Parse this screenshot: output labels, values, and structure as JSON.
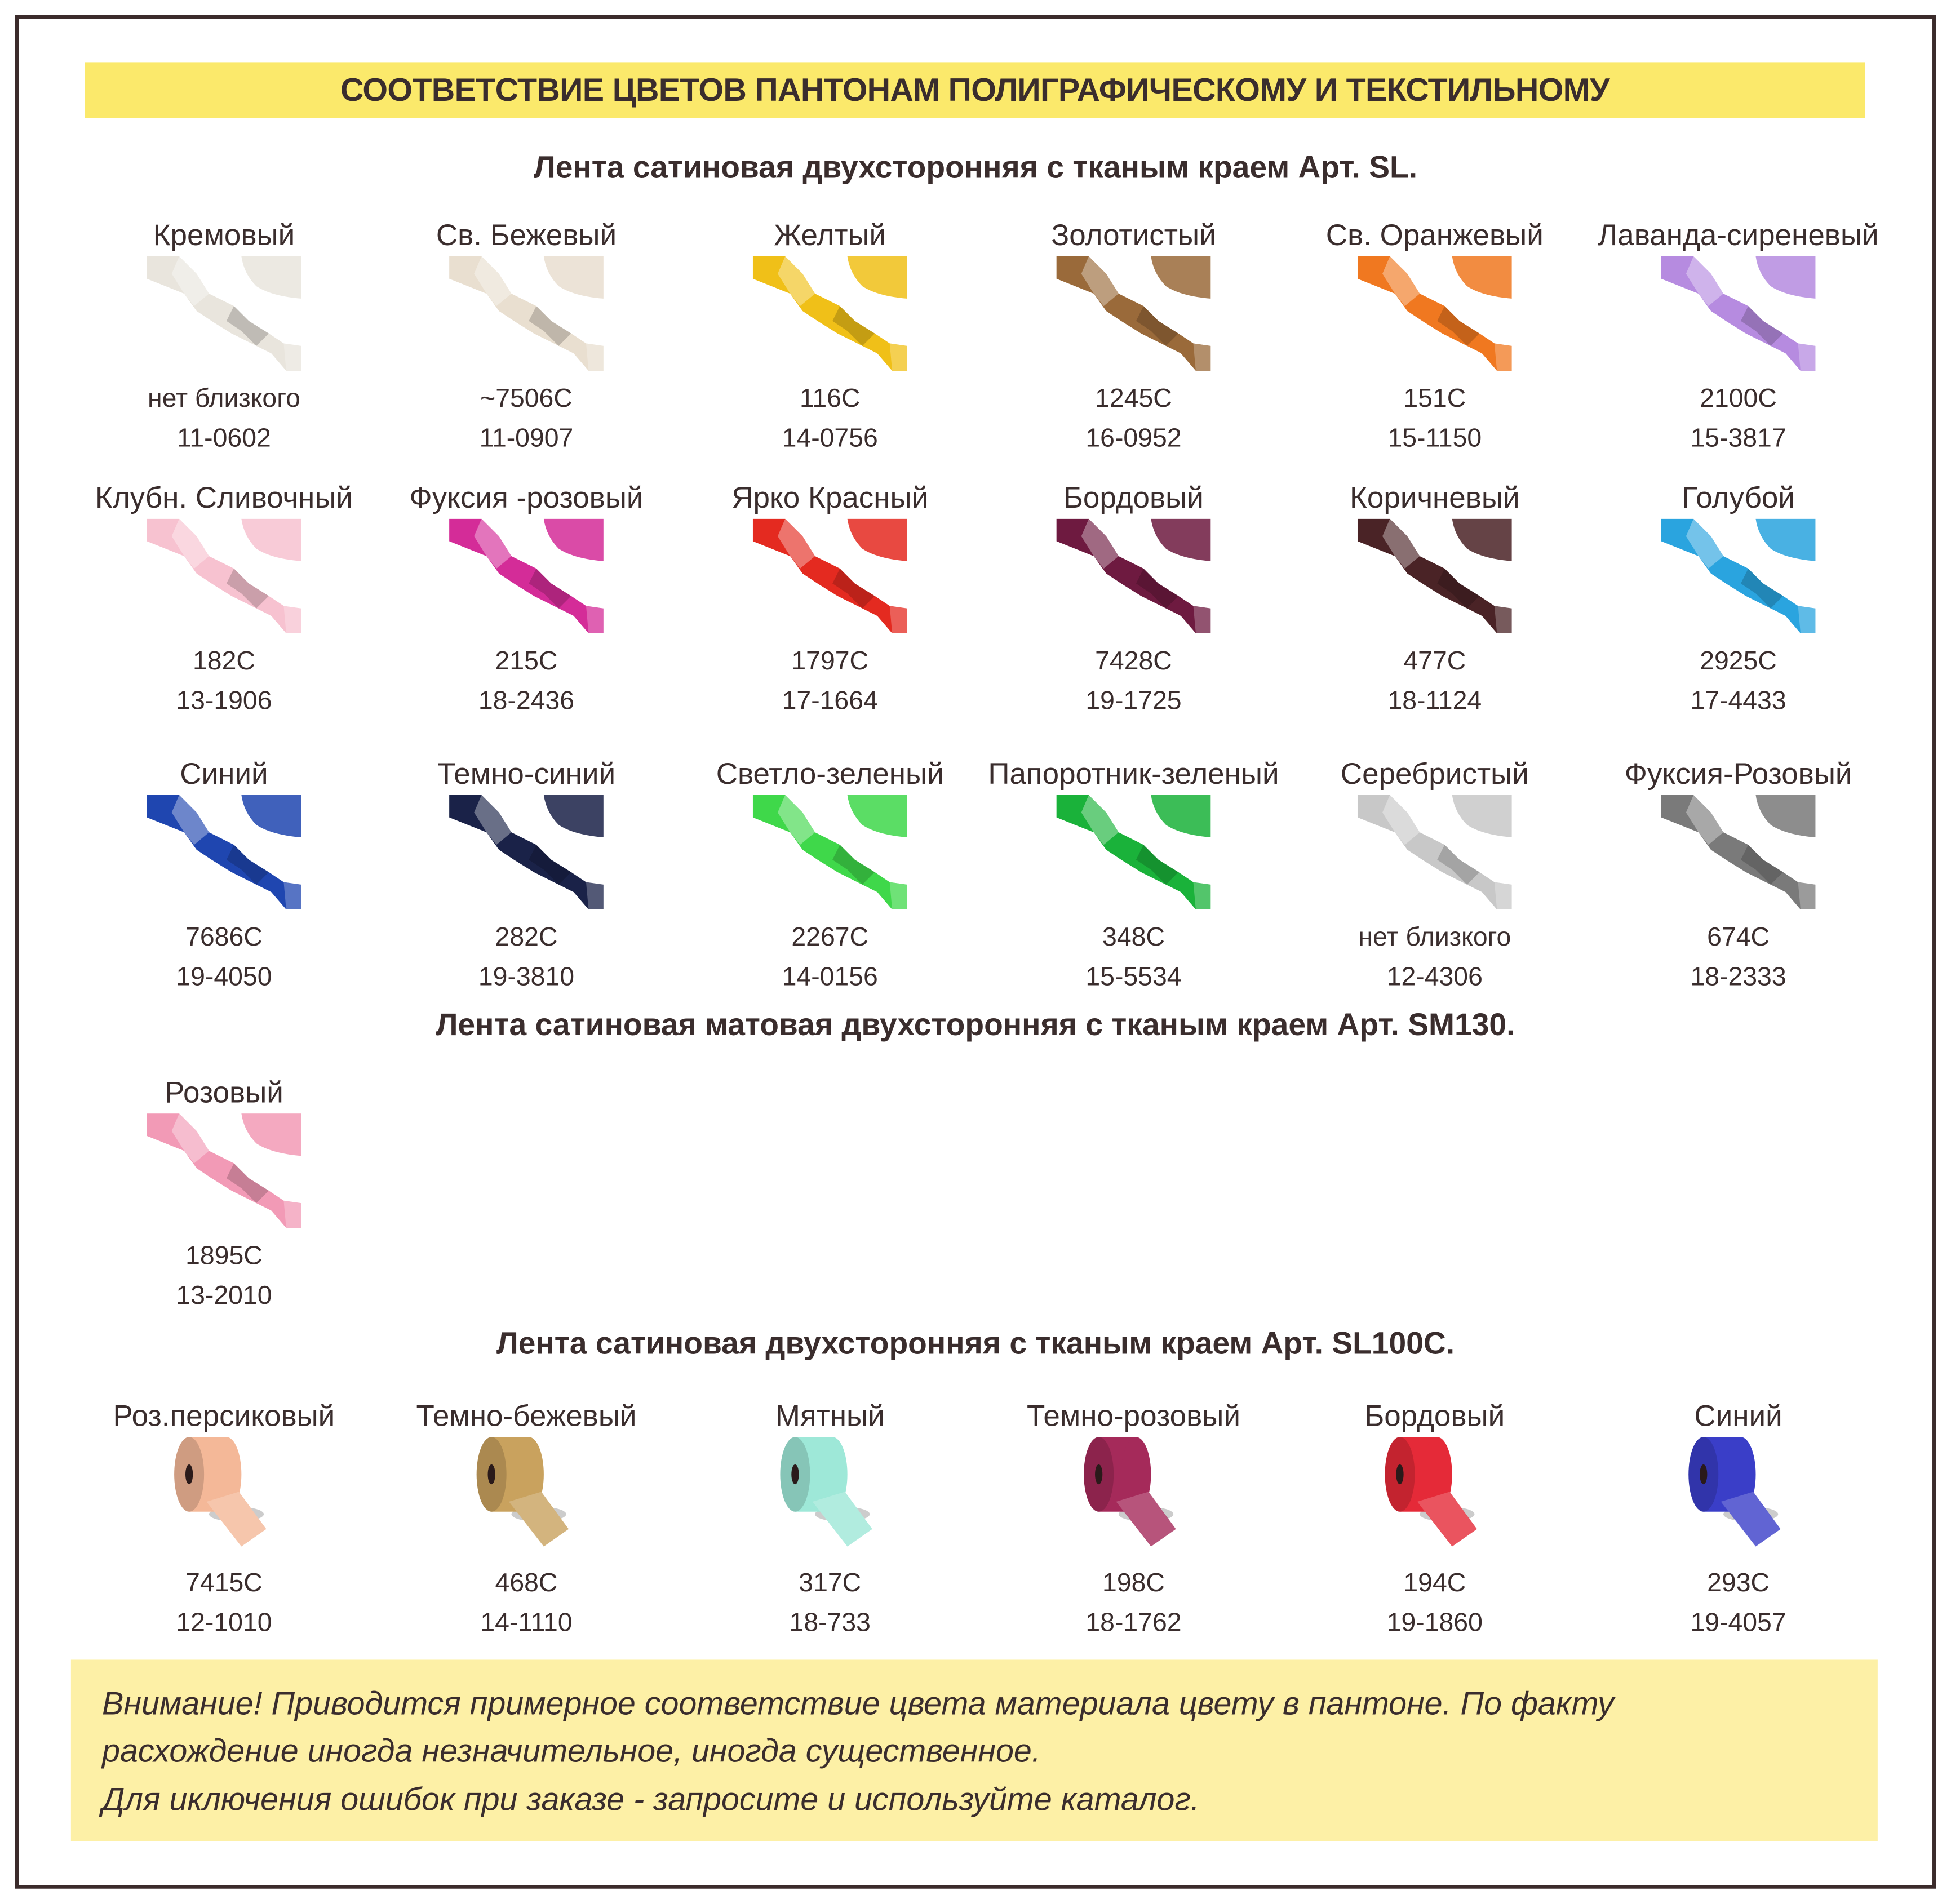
{
  "title": "СООТВЕТСТВИЕ ЦВЕТОВ ПАНТОНАМ ПОЛИГРАФИЧЕСКОМУ И ТЕКСТИЛЬНОМУ",
  "sections": [
    {
      "title": "Лента сатиновая двухсторонняя с тканым краем Арт. SL.",
      "kind": "ribbon",
      "items": [
        {
          "name": "Кремовый",
          "pantone": "нет близкого",
          "tcx": "11-0602",
          "color": "#e9e5dd"
        },
        {
          "name": "Св. Бежевый",
          "pantone": "~7506C",
          "tcx": "11-0907",
          "color": "#e9dfd0"
        },
        {
          "name": "Желтый",
          "pantone": "116C",
          "tcx": "14-0756",
          "color": "#f0c018"
        },
        {
          "name": "Золотистый",
          "pantone": "1245C",
          "tcx": "16-0952",
          "color": "#9a6a3a"
        },
        {
          "name": "Св. Оранжевый",
          "pantone": "151C",
          "tcx": "15-1150",
          "color": "#f07820"
        },
        {
          "name": "Лаванда-сиреневый",
          "pantone": "2100C",
          "tcx": "15-3817",
          "color": "#b68be0"
        },
        {
          "name": "Клубн. Сливочный",
          "pantone": "182C",
          "tcx": "13-1906",
          "color": "#f7c2d0"
        },
        {
          "name": "Фуксия -розовый",
          "pantone": "215C",
          "tcx": "18-2436",
          "color": "#d42c98"
        },
        {
          "name": "Ярко Красный",
          "pantone": "1797C",
          "tcx": "17-1664",
          "color": "#e42a20"
        },
        {
          "name": "Бордовый",
          "pantone": "7428C",
          "tcx": "19-1725",
          "color": "#6e1a40"
        },
        {
          "name": "Коричневый",
          "pantone": "477C",
          "tcx": "18-1124",
          "color": "#4a2326"
        },
        {
          "name": "Голубой",
          "pantone": "2925C",
          "tcx": "17-4433",
          "color": "#2aa4df"
        },
        {
          "name": "Синий",
          "pantone": "7686C",
          "tcx": "19-4050",
          "color": "#1f46b0"
        },
        {
          "name": "Темно-синий",
          "pantone": "282C",
          "tcx": "19-3810",
          "color": "#1a2248"
        },
        {
          "name": "Светло-зеленый",
          "pantone": "2267C",
          "tcx": "14-0156",
          "color": "#3fd84a"
        },
        {
          "name": "Папоротник-зеленый",
          "pantone": "348C",
          "tcx": "15-5534",
          "color": "#1ab23a"
        },
        {
          "name": "Серебристый",
          "pantone": "нет близкого",
          "tcx": "12-4306",
          "color": "#c8c8c8"
        },
        {
          "name": "Фуксия-Розовый",
          "pantone": "674C",
          "tcx": "18-2333",
          "color": "#7a7a7a"
        }
      ]
    },
    {
      "title": "Лента сатиновая матовая двухсторонняя с тканым краем Арт. SM130.",
      "kind": "ribbon",
      "items": [
        {
          "name": "Розовый",
          "pantone": "1895C",
          "tcx": "13-2010",
          "color": "#f29ab6"
        }
      ]
    },
    {
      "title": "Лента сатиновая двухсторонняя с тканым краем Арт. SL100C.",
      "kind": "roll",
      "items": [
        {
          "name": "Роз.персиковый",
          "pantone": "7415C",
          "tcx": "12-1010",
          "color": "#f4b898"
        },
        {
          "name": "Темно-бежевый",
          "pantone": "468C",
          "tcx": "14-1110",
          "color": "#c9a25e"
        },
        {
          "name": "Мятный",
          "pantone": "317C",
          "tcx": "18-733",
          "color": "#9ee8d8"
        },
        {
          "name": "Темно-розовый",
          "pantone": "198C",
          "tcx": "18-1762",
          "color": "#a52a5a"
        },
        {
          "name": "Бордовый",
          "pantone": "194C",
          "tcx": "19-1860",
          "color": "#e52a38"
        },
        {
          "name": "Синий",
          "pantone": "293C",
          "tcx": "19-4057",
          "color": "#3a3ec8"
        }
      ]
    }
  ],
  "note": [
    "Внимание! Приводится примерное соответствие цвета материала цвету в пантоне. По факту",
    "расхождение иногда незначительное, иногда существенное.",
    "Для иключения ошибок при заказе - запросите и используйте каталог."
  ]
}
